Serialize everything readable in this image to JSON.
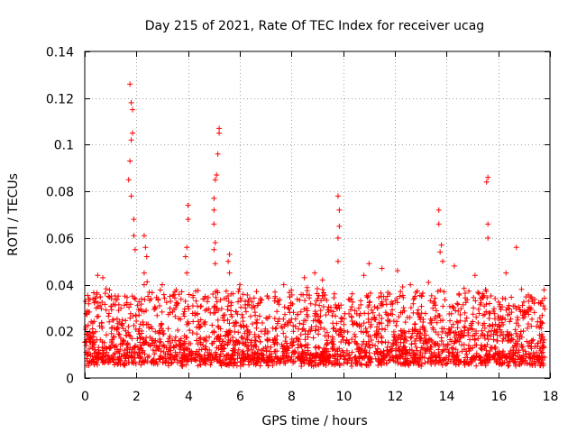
{
  "chart_data": {
    "type": "scatter",
    "title": "Day 215 of 2021, Rate Of TEC Index for receiver ucag",
    "xlabel": "GPS time / hours",
    "ylabel": "ROTI / TECUs",
    "xlim": [
      0,
      18
    ],
    "ylim": [
      0,
      0.14
    ],
    "xticks": [
      0,
      2,
      4,
      6,
      8,
      10,
      12,
      14,
      16,
      18
    ],
    "yticks": [
      0,
      0.02,
      0.04,
      0.06,
      0.08,
      0.1,
      0.12,
      0.14
    ],
    "ytick_labels": [
      "0",
      "0.02",
      "0.04",
      "0.06",
      "0.08",
      "0.1",
      "0.12",
      "0.14"
    ],
    "grid": true,
    "marker": "+",
    "color": "#ff0000",
    "x_range_data": [
      0,
      17.8
    ],
    "baseline_range": [
      0.005,
      0.035
    ],
    "spike_points": [
      {
        "x": 1.75,
        "y": 0.126
      },
      {
        "x": 1.8,
        "y": 0.118
      },
      {
        "x": 1.85,
        "y": 0.115
      },
      {
        "x": 1.85,
        "y": 0.105
      },
      {
        "x": 1.8,
        "y": 0.102
      },
      {
        "x": 1.75,
        "y": 0.093
      },
      {
        "x": 1.7,
        "y": 0.085
      },
      {
        "x": 1.8,
        "y": 0.078
      },
      {
        "x": 1.9,
        "y": 0.068
      },
      {
        "x": 1.9,
        "y": 0.061
      },
      {
        "x": 1.95,
        "y": 0.055
      },
      {
        "x": 2.3,
        "y": 0.061
      },
      {
        "x": 2.35,
        "y": 0.056
      },
      {
        "x": 2.4,
        "y": 0.052
      },
      {
        "x": 2.3,
        "y": 0.045
      },
      {
        "x": 2.3,
        "y": 0.04
      },
      {
        "x": 4.0,
        "y": 0.074
      },
      {
        "x": 4.0,
        "y": 0.068
      },
      {
        "x": 3.95,
        "y": 0.056
      },
      {
        "x": 3.9,
        "y": 0.052
      },
      {
        "x": 3.95,
        "y": 0.045
      },
      {
        "x": 5.2,
        "y": 0.107
      },
      {
        "x": 5.2,
        "y": 0.105
      },
      {
        "x": 5.15,
        "y": 0.096
      },
      {
        "x": 5.1,
        "y": 0.087
      },
      {
        "x": 5.05,
        "y": 0.085
      },
      {
        "x": 5.0,
        "y": 0.077
      },
      {
        "x": 5.0,
        "y": 0.072
      },
      {
        "x": 5.0,
        "y": 0.066
      },
      {
        "x": 5.05,
        "y": 0.058
      },
      {
        "x": 5.0,
        "y": 0.055
      },
      {
        "x": 5.05,
        "y": 0.049
      },
      {
        "x": 5.6,
        "y": 0.053
      },
      {
        "x": 5.55,
        "y": 0.05
      },
      {
        "x": 5.6,
        "y": 0.045
      },
      {
        "x": 9.8,
        "y": 0.078
      },
      {
        "x": 9.85,
        "y": 0.072
      },
      {
        "x": 9.85,
        "y": 0.065
      },
      {
        "x": 9.8,
        "y": 0.06
      },
      {
        "x": 9.8,
        "y": 0.05
      },
      {
        "x": 11.0,
        "y": 0.049
      },
      {
        "x": 11.5,
        "y": 0.047
      },
      {
        "x": 12.1,
        "y": 0.046
      },
      {
        "x": 13.7,
        "y": 0.072
      },
      {
        "x": 13.7,
        "y": 0.066
      },
      {
        "x": 13.8,
        "y": 0.057
      },
      {
        "x": 13.75,
        "y": 0.054
      },
      {
        "x": 13.85,
        "y": 0.05
      },
      {
        "x": 14.3,
        "y": 0.048
      },
      {
        "x": 15.6,
        "y": 0.086
      },
      {
        "x": 15.55,
        "y": 0.084
      },
      {
        "x": 15.6,
        "y": 0.066
      },
      {
        "x": 15.6,
        "y": 0.06
      },
      {
        "x": 16.7,
        "y": 0.056
      },
      {
        "x": 0.5,
        "y": 0.044
      },
      {
        "x": 0.7,
        "y": 0.043
      },
      {
        "x": 3.0,
        "y": 0.04
      },
      {
        "x": 6.0,
        "y": 0.04
      },
      {
        "x": 7.7,
        "y": 0.04
      },
      {
        "x": 8.5,
        "y": 0.043
      },
      {
        "x": 8.9,
        "y": 0.045
      },
      {
        "x": 9.2,
        "y": 0.042
      },
      {
        "x": 10.8,
        "y": 0.044
      },
      {
        "x": 12.6,
        "y": 0.04
      },
      {
        "x": 13.3,
        "y": 0.041
      },
      {
        "x": 15.1,
        "y": 0.044
      },
      {
        "x": 16.3,
        "y": 0.045
      },
      {
        "x": 16.9,
        "y": 0.038
      },
      {
        "x": 17.3,
        "y": 0.034
      }
    ]
  }
}
